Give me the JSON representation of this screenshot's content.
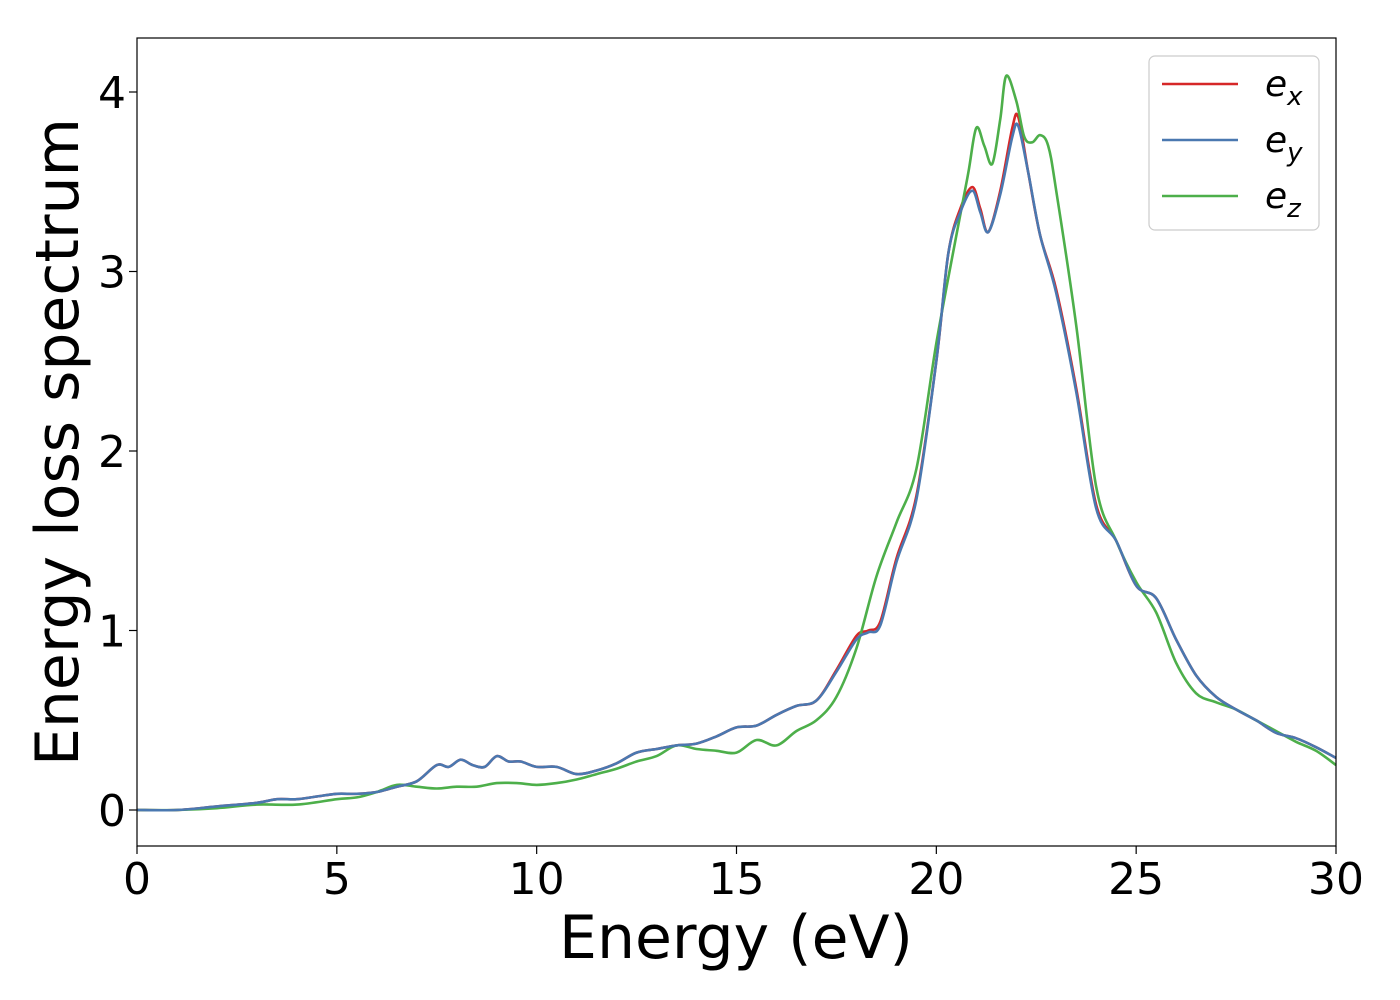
{
  "chart_data": {
    "type": "line",
    "xlabel": "Energy (eV)",
    "ylabel": "Energy loss spectrum",
    "xlim": [
      0,
      30
    ],
    "ylim": [
      -0.2,
      4.3
    ],
    "xticks": [
      0,
      5,
      10,
      15,
      20,
      25,
      30
    ],
    "yticks": [
      0,
      1,
      2,
      3,
      4
    ],
    "grid": false,
    "legend_position": "top-right",
    "series": [
      {
        "name": "e_x",
        "legend_base": "e",
        "legend_sub": "x",
        "color": "#d62728",
        "x": [
          0,
          1,
          2,
          3,
          3.5,
          4,
          4.5,
          5,
          5.5,
          6,
          6.5,
          7,
          7.5,
          7.8,
          8.1,
          8.4,
          8.7,
          9,
          9.3,
          9.6,
          10,
          10.5,
          11,
          11.5,
          12,
          12.5,
          13,
          13.5,
          14,
          14.5,
          15,
          15.5,
          16,
          16.5,
          17,
          17.5,
          18,
          18.3,
          18.6,
          19,
          19.5,
          20,
          20.3,
          20.6,
          20.9,
          21.1,
          21.3,
          21.6,
          21.9,
          22.05,
          22.3,
          22.6,
          23,
          23.5,
          24,
          24.5,
          25,
          25.5,
          26,
          26.5,
          27,
          27.5,
          28,
          28.5,
          29,
          29.5,
          30
        ],
        "y": [
          0,
          0,
          0.02,
          0.04,
          0.06,
          0.06,
          0.075,
          0.09,
          0.09,
          0.1,
          0.13,
          0.16,
          0.25,
          0.24,
          0.28,
          0.25,
          0.24,
          0.3,
          0.27,
          0.27,
          0.24,
          0.24,
          0.2,
          0.22,
          0.26,
          0.32,
          0.34,
          0.36,
          0.37,
          0.41,
          0.46,
          0.47,
          0.53,
          0.58,
          0.61,
          0.78,
          0.97,
          1.0,
          1.05,
          1.4,
          1.75,
          2.5,
          3.1,
          3.35,
          3.47,
          3.35,
          3.22,
          3.45,
          3.8,
          3.86,
          3.55,
          3.2,
          2.9,
          2.35,
          1.7,
          1.5,
          1.25,
          1.18,
          0.95,
          0.75,
          0.63,
          0.56,
          0.5,
          0.43,
          0.4,
          0.35,
          0.29
        ]
      },
      {
        "name": "e_y",
        "legend_base": "e",
        "legend_sub": "y",
        "color": "#4a78b0",
        "x": [
          0,
          1,
          2,
          3,
          3.5,
          4,
          4.5,
          5,
          5.5,
          6,
          6.5,
          7,
          7.5,
          7.8,
          8.1,
          8.4,
          8.7,
          9,
          9.3,
          9.6,
          10,
          10.5,
          11,
          11.5,
          12,
          12.5,
          13,
          13.5,
          14,
          14.5,
          15,
          15.5,
          16,
          16.5,
          17,
          17.5,
          18,
          18.3,
          18.6,
          19,
          19.5,
          20,
          20.3,
          20.6,
          20.9,
          21.1,
          21.3,
          21.6,
          21.9,
          22.05,
          22.3,
          22.6,
          23,
          23.5,
          24,
          24.5,
          25,
          25.5,
          26,
          26.5,
          27,
          27.5,
          28,
          28.5,
          29,
          29.5,
          30
        ],
        "y": [
          0,
          0,
          0.02,
          0.04,
          0.06,
          0.06,
          0.075,
          0.09,
          0.09,
          0.1,
          0.13,
          0.16,
          0.25,
          0.24,
          0.28,
          0.25,
          0.24,
          0.3,
          0.27,
          0.27,
          0.24,
          0.24,
          0.2,
          0.22,
          0.26,
          0.32,
          0.34,
          0.36,
          0.37,
          0.41,
          0.46,
          0.47,
          0.53,
          0.58,
          0.61,
          0.77,
          0.95,
          0.99,
          1.03,
          1.38,
          1.73,
          2.5,
          3.1,
          3.33,
          3.45,
          3.33,
          3.22,
          3.43,
          3.75,
          3.81,
          3.55,
          3.2,
          2.88,
          2.33,
          1.68,
          1.5,
          1.25,
          1.18,
          0.95,
          0.75,
          0.63,
          0.56,
          0.5,
          0.43,
          0.4,
          0.35,
          0.29
        ]
      },
      {
        "name": "e_z",
        "legend_base": "e",
        "legend_sub": "z",
        "color": "#4daf4a",
        "x": [
          0,
          1,
          2,
          3,
          4,
          5,
          5.5,
          6,
          6.5,
          7,
          7.5,
          8,
          8.5,
          9,
          9.5,
          10,
          10.5,
          11,
          11.5,
          12,
          12.5,
          13,
          13.5,
          14,
          14.5,
          15,
          15.5,
          16,
          16.5,
          17,
          17.5,
          18,
          18.5,
          19,
          19.5,
          20,
          20.5,
          20.8,
          21,
          21.2,
          21.4,
          21.6,
          21.75,
          22,
          22.2,
          22.4,
          22.6,
          22.8,
          23,
          23.5,
          24,
          24.5,
          25,
          25.5,
          26,
          26.5,
          27,
          27.5,
          28,
          28.5,
          29,
          29.5,
          30
        ],
        "y": [
          0,
          0,
          0.01,
          0.03,
          0.03,
          0.06,
          0.07,
          0.1,
          0.14,
          0.13,
          0.12,
          0.13,
          0.13,
          0.15,
          0.15,
          0.14,
          0.15,
          0.17,
          0.2,
          0.23,
          0.27,
          0.3,
          0.36,
          0.34,
          0.33,
          0.32,
          0.39,
          0.36,
          0.44,
          0.5,
          0.63,
          0.9,
          1.3,
          1.6,
          1.9,
          2.6,
          3.2,
          3.55,
          3.8,
          3.7,
          3.6,
          3.85,
          4.09,
          3.95,
          3.75,
          3.72,
          3.76,
          3.7,
          3.45,
          2.7,
          1.8,
          1.5,
          1.27,
          1.1,
          0.82,
          0.65,
          0.6,
          0.56,
          0.5,
          0.44,
          0.38,
          0.33,
          0.25
        ]
      }
    ]
  }
}
